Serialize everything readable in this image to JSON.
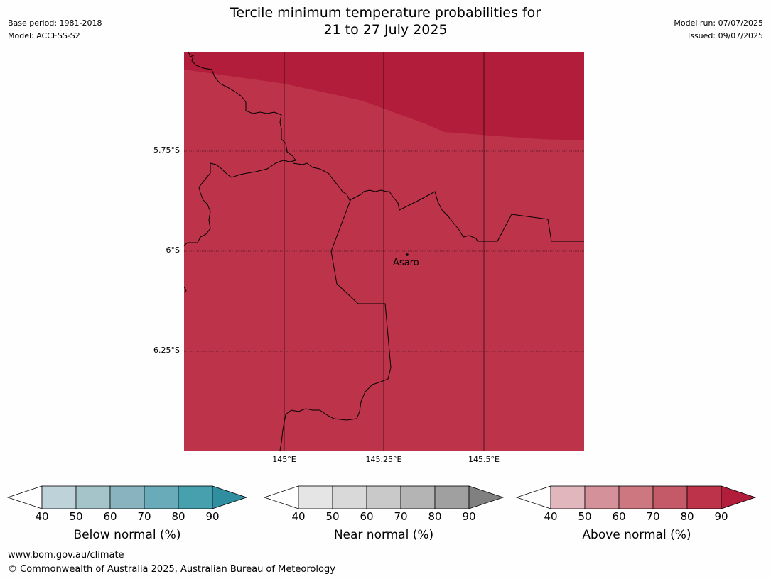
{
  "title_line1": "Tercile minimum temperature probabilities for",
  "title_line2": "21 to 27 July 2025",
  "meta_left": {
    "base_period": "Base period: 1981-2018",
    "model": "Model: ACCESS-S2"
  },
  "meta_right": {
    "model_run": "Model run: 07/07/2025",
    "issued": "Issued: 09/07/2025"
  },
  "map": {
    "lat_labels": [
      "5.75°S",
      "6°S",
      "6.25°S"
    ],
    "lon_labels": [
      "145°E",
      "145.25°E",
      "145.5°E"
    ],
    "place": "Asaro",
    "colors": {
      "above_70_80": "#bc334a",
      "above_80_90": "#b11d3a"
    }
  },
  "colorbars": {
    "ticks": [
      "40",
      "50",
      "60",
      "70",
      "80",
      "90"
    ],
    "below": {
      "label": "Below normal (%)",
      "colors": [
        "#bed3d9",
        "#a5c4ca",
        "#88b3bf",
        "#6aabb9",
        "#47a0ae",
        "#2f8e9f"
      ]
    },
    "near": {
      "label": "Near normal (%)",
      "colors": [
        "#e5e5e5",
        "#d9d9d9",
        "#c9c9c9",
        "#b4b4b4",
        "#a0a0a0",
        "#808080"
      ]
    },
    "above": {
      "label": "Above normal (%)",
      "colors": [
        "#e1b7bd",
        "#d59199",
        "#cd7780",
        "#c45a68",
        "#bc334a",
        "#b11d3a"
      ]
    }
  },
  "footer": {
    "url": "www.bom.gov.au/climate",
    "copyright": "© Commonwealth of Australia 2025, Australian Bureau of Meteorology"
  }
}
